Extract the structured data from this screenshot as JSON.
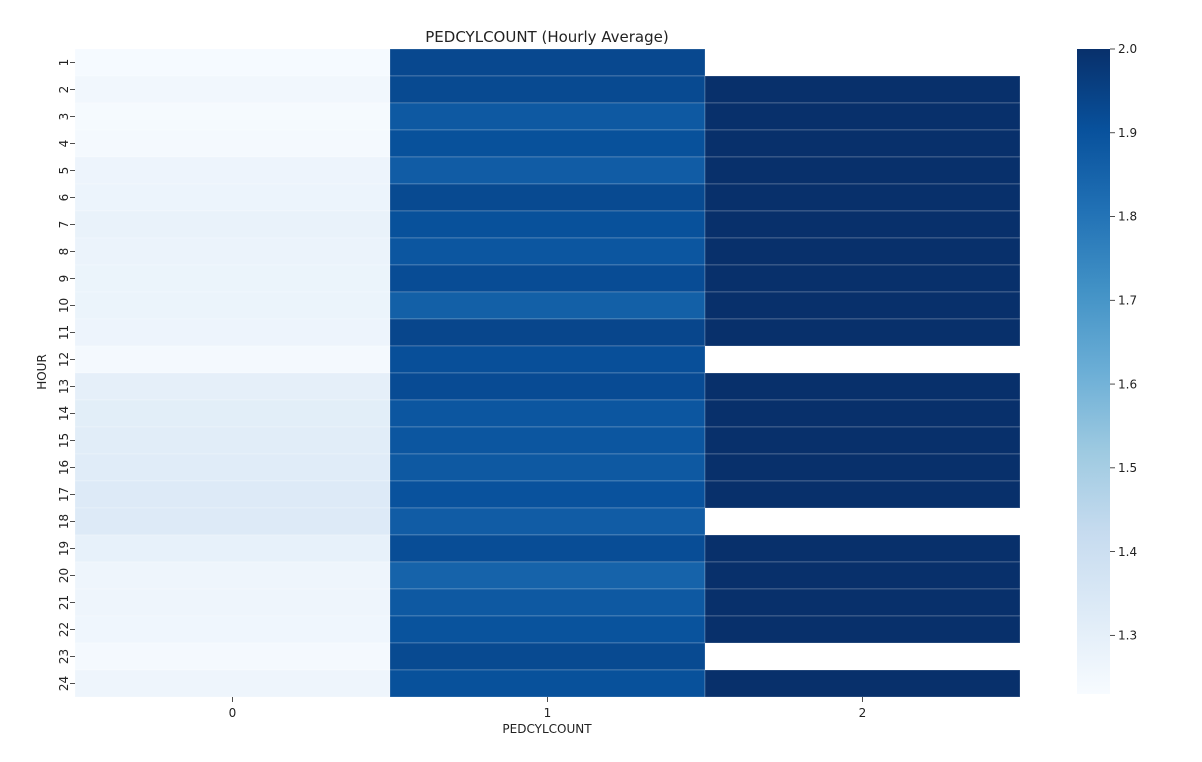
{
  "chart_data": {
    "type": "heatmap",
    "title": "PEDCYLCOUNT (Hourly Average)",
    "xlabel": "PEDCYLCOUNT",
    "ylabel": "HOUR",
    "x_categories": [
      "0",
      "1",
      "2"
    ],
    "y_categories": [
      "1",
      "2",
      "3",
      "4",
      "5",
      "6",
      "7",
      "8",
      "9",
      "10",
      "11",
      "12",
      "13",
      "14",
      "15",
      "16",
      "17",
      "18",
      "19",
      "20",
      "21",
      "22",
      "23",
      "24"
    ],
    "values": [
      [
        1.236,
        1.93,
        null
      ],
      [
        1.255,
        1.925,
        2.0
      ],
      [
        1.238,
        1.88,
        2.0
      ],
      [
        1.24,
        1.905,
        2.0
      ],
      [
        1.27,
        1.87,
        2.0
      ],
      [
        1.272,
        1.925,
        2.0
      ],
      [
        1.285,
        1.905,
        2.0
      ],
      [
        1.278,
        1.89,
        2.0
      ],
      [
        1.275,
        1.918,
        2.0
      ],
      [
        1.275,
        1.86,
        2.0
      ],
      [
        1.27,
        1.935,
        2.0
      ],
      [
        1.24,
        1.91,
        null
      ],
      [
        1.3,
        1.92,
        2.0
      ],
      [
        1.31,
        1.89,
        2.0
      ],
      [
        1.315,
        1.888,
        2.0
      ],
      [
        1.32,
        1.88,
        2.0
      ],
      [
        1.33,
        1.9,
        2.0
      ],
      [
        1.33,
        1.87,
        null
      ],
      [
        1.29,
        1.915,
        2.0
      ],
      [
        1.265,
        1.85,
        2.0
      ],
      [
        1.265,
        1.88,
        2.0
      ],
      [
        1.26,
        1.898,
        2.0
      ],
      [
        1.24,
        1.925,
        null
      ],
      [
        1.265,
        1.905,
        2.0
      ]
    ],
    "colorbar": {
      "min": 1.23,
      "max": 2.0,
      "ticks": [
        "1.3",
        "1.4",
        "1.5",
        "1.6",
        "1.7",
        "1.8",
        "1.9",
        "2.0"
      ],
      "colormap": "Blues"
    }
  }
}
